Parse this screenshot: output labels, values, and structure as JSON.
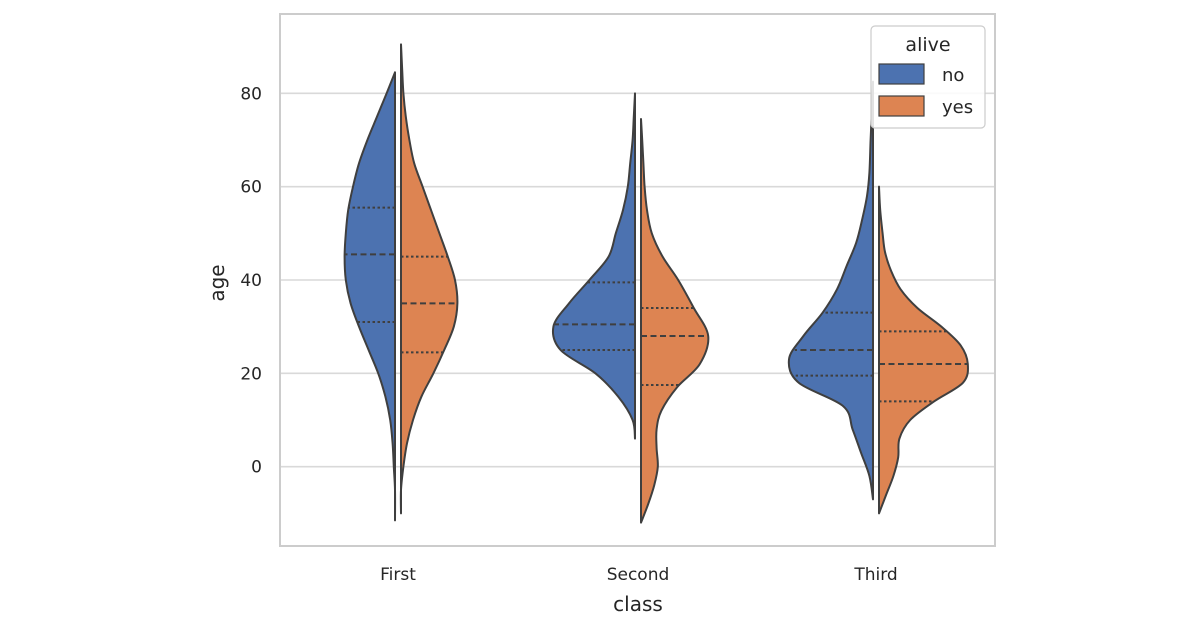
{
  "chart_data": {
    "type": "violin",
    "split": true,
    "inner": "quartile",
    "title": "",
    "xlabel": "class",
    "ylabel": "age",
    "categories": [
      "First",
      "Second",
      "Third"
    ],
    "ylim": [
      -17,
      97
    ],
    "yticks": [
      0,
      20,
      40,
      60,
      80
    ],
    "grid": "horizontal",
    "legend": {
      "title": "alive",
      "placement": "top-right"
    },
    "series": [
      {
        "name": "no",
        "color": "#4c72b0",
        "violins": [
          {
            "category": "First",
            "quartiles": [
              31,
              45.5,
              55.5
            ],
            "profile": [
              [
                -11.5,
                0.0
              ],
              [
                -5,
                0.0
              ],
              [
                0,
                0.01
              ],
              [
                5,
                0.02
              ],
              [
                10,
                0.04
              ],
              [
                15,
                0.08
              ],
              [
                20,
                0.14
              ],
              [
                25,
                0.22
              ],
              [
                30,
                0.3
              ],
              [
                35,
                0.37
              ],
              [
                40,
                0.41
              ],
              [
                45,
                0.42
              ],
              [
                50,
                0.41
              ],
              [
                55,
                0.39
              ],
              [
                60,
                0.35
              ],
              [
                65,
                0.3
              ],
              [
                70,
                0.23
              ],
              [
                75,
                0.15
              ],
              [
                80,
                0.07
              ],
              [
                84.5,
                0.0
              ]
            ]
          },
          {
            "category": "Second",
            "quartiles": [
              25,
              30.5,
              39.5
            ],
            "profile": [
              [
                6,
                0.0
              ],
              [
                10,
                0.02
              ],
              [
                15,
                0.14
              ],
              [
                20,
                0.33
              ],
              [
                25,
                0.62
              ],
              [
                30,
                0.68
              ],
              [
                35,
                0.55
              ],
              [
                40,
                0.38
              ],
              [
                45,
                0.22
              ],
              [
                50,
                0.16
              ],
              [
                55,
                0.1
              ],
              [
                60,
                0.06
              ],
              [
                65,
                0.04
              ],
              [
                70,
                0.02
              ],
              [
                75,
                0.01
              ],
              [
                80,
                0.0
              ]
            ]
          },
          {
            "category": "Third",
            "quartiles": [
              19.5,
              25,
              33
            ],
            "profile": [
              [
                -7,
                0.0
              ],
              [
                -2,
                0.03
              ],
              [
                3,
                0.1
              ],
              [
                8,
                0.17
              ],
              [
                13,
                0.25
              ],
              [
                18,
                0.62
              ],
              [
                23,
                0.7
              ],
              [
                28,
                0.58
              ],
              [
                33,
                0.42
              ],
              [
                38,
                0.3
              ],
              [
                43,
                0.22
              ],
              [
                48,
                0.14
              ],
              [
                53,
                0.09
              ],
              [
                58,
                0.05
              ],
              [
                63,
                0.03
              ],
              [
                70,
                0.02
              ],
              [
                76,
                0.01
              ],
              [
                82.5,
                0.0
              ]
            ]
          }
        ]
      },
      {
        "name": "yes",
        "color": "#dd8452",
        "violins": [
          {
            "category": "First",
            "quartiles": [
              24.5,
              35,
              45
            ],
            "profile": [
              [
                -10,
                0.0
              ],
              [
                -5,
                0.0
              ],
              [
                0,
                0.02
              ],
              [
                5,
                0.05
              ],
              [
                10,
                0.1
              ],
              [
                15,
                0.17
              ],
              [
                20,
                0.27
              ],
              [
                25,
                0.36
              ],
              [
                30,
                0.44
              ],
              [
                35,
                0.47
              ],
              [
                40,
                0.45
              ],
              [
                45,
                0.39
              ],
              [
                50,
                0.32
              ],
              [
                55,
                0.25
              ],
              [
                60,
                0.18
              ],
              [
                65,
                0.11
              ],
              [
                70,
                0.07
              ],
              [
                75,
                0.04
              ],
              [
                80,
                0.02
              ],
              [
                85,
                0.01
              ],
              [
                90.5,
                0.0
              ]
            ]
          },
          {
            "category": "Second",
            "quartiles": [
              17.5,
              28,
              34
            ],
            "profile": [
              [
                -12,
                0.0
              ],
              [
                -8,
                0.06
              ],
              [
                -4,
                0.11
              ],
              [
                0,
                0.14
              ],
              [
                4,
                0.13
              ],
              [
                8,
                0.13
              ],
              [
                12,
                0.17
              ],
              [
                17,
                0.3
              ],
              [
                22,
                0.49
              ],
              [
                28,
                0.56
              ],
              [
                34,
                0.44
              ],
              [
                40,
                0.31
              ],
              [
                45,
                0.18
              ],
              [
                50,
                0.09
              ],
              [
                55,
                0.05
              ],
              [
                60,
                0.03
              ],
              [
                65,
                0.02
              ],
              [
                70,
                0.01
              ],
              [
                74.5,
                0.0
              ]
            ]
          },
          {
            "category": "Third",
            "quartiles": [
              14,
              22,
              29
            ],
            "profile": [
              [
                -10,
                0.0
              ],
              [
                -6,
                0.06
              ],
              [
                -2,
                0.12
              ],
              [
                2,
                0.16
              ],
              [
                6,
                0.17
              ],
              [
                10,
                0.26
              ],
              [
                14,
                0.46
              ],
              [
                18,
                0.7
              ],
              [
                22,
                0.74
              ],
              [
                26,
                0.68
              ],
              [
                30,
                0.52
              ],
              [
                34,
                0.32
              ],
              [
                38,
                0.18
              ],
              [
                42,
                0.1
              ],
              [
                46,
                0.05
              ],
              [
                50,
                0.03
              ],
              [
                55,
                0.01
              ],
              [
                60,
                0.0
              ]
            ]
          }
        ]
      }
    ]
  }
}
